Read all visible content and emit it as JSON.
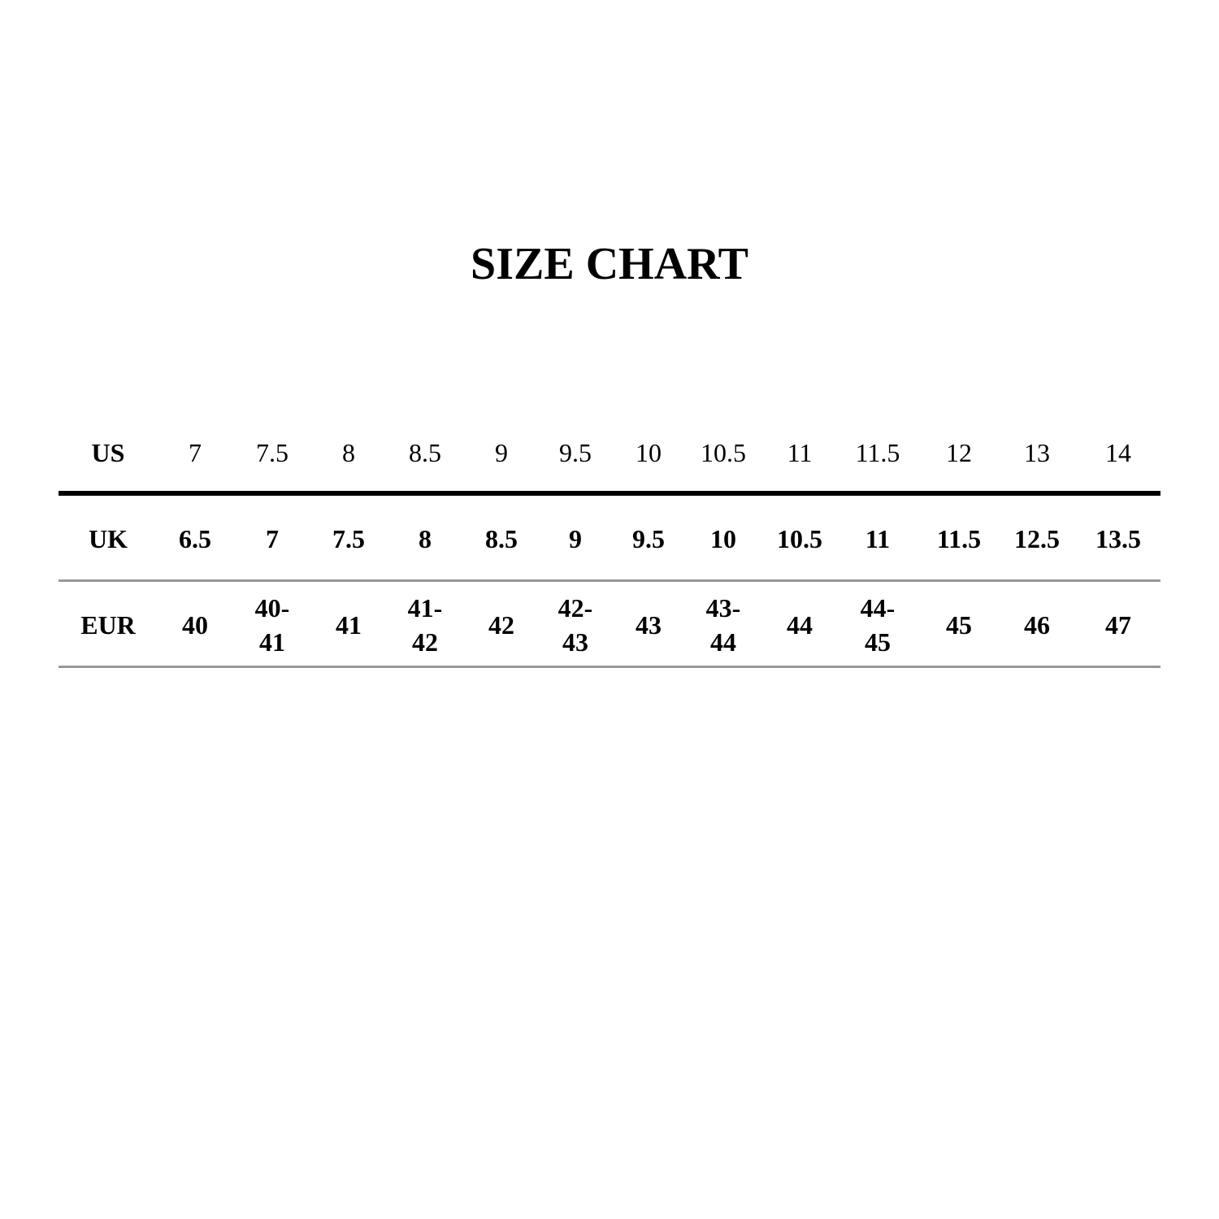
{
  "title": "SIZE CHART",
  "table": {
    "rows": [
      {
        "label": "US",
        "values": [
          "7",
          "7.5",
          "8",
          "8.5",
          "9",
          "9.5",
          "10",
          "10.5",
          "11",
          "11.5",
          "12",
          "13",
          "14"
        ]
      },
      {
        "label": "UK",
        "values": [
          "6.5",
          "7",
          "7.5",
          "8",
          "8.5",
          "9",
          "9.5",
          "10",
          "10.5",
          "11",
          "11.5",
          "12.5",
          "13.5"
        ]
      },
      {
        "label": "EUR",
        "values": [
          "40",
          "40-\n41",
          "41",
          "41-\n42",
          "42",
          "42-\n43",
          "43",
          "43-\n44",
          "44",
          "44-\n45",
          "45",
          "46",
          "47"
        ]
      }
    ]
  }
}
